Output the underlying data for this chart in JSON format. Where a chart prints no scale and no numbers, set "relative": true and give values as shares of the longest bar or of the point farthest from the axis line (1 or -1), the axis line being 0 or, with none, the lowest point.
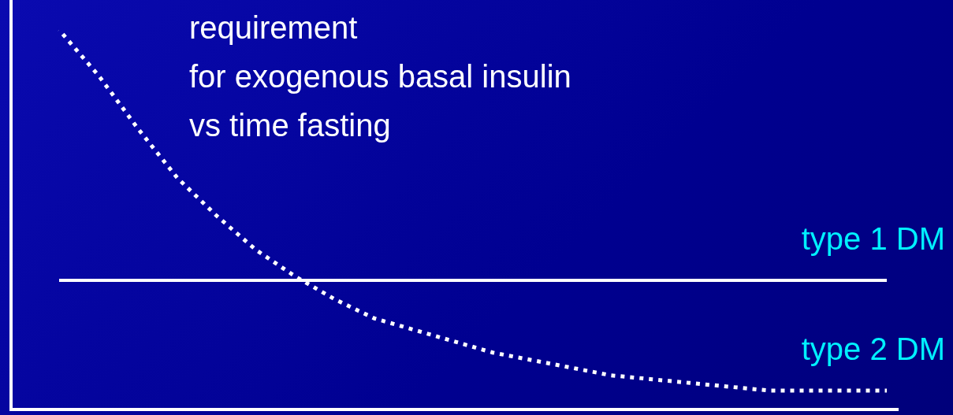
{
  "chart_data": {
    "type": "line",
    "title": "requirement\nfor exogenous basal insulin\nvs time fasting",
    "relative": true,
    "legend": false,
    "marker": "none",
    "categories": [
      null,
      null,
      null,
      null,
      null,
      null,
      null,
      null,
      null,
      null,
      null,
      null,
      null,
      null,
      null,
      null,
      null,
      null,
      null,
      null,
      null,
      null
    ],
    "series": [
      {
        "name": "type 1 DM",
        "color": "#ffffff",
        "line_style": "solid",
        "values": [
          0.34,
          0.34,
          0.34,
          0.34,
          0.34,
          0.34,
          0.34,
          0.34,
          0.34,
          0.34,
          0.34,
          0.34,
          0.34,
          0.34,
          0.34,
          0.34,
          0.34,
          0.34,
          0.34,
          0.34,
          0.34,
          0.34
        ]
      },
      {
        "name": "type 2 DM",
        "color": "#ffffff",
        "line_style": "dotted",
        "values": [
          1.0,
          0.88,
          0.74,
          0.61,
          0.51,
          0.42,
          0.35,
          0.29,
          0.24,
          0.21,
          0.18,
          0.15,
          0.13,
          0.11,
          0.09,
          0.08,
          0.07,
          0.06,
          0.05,
          0.05,
          0.05,
          0.05
        ]
      }
    ]
  }
}
